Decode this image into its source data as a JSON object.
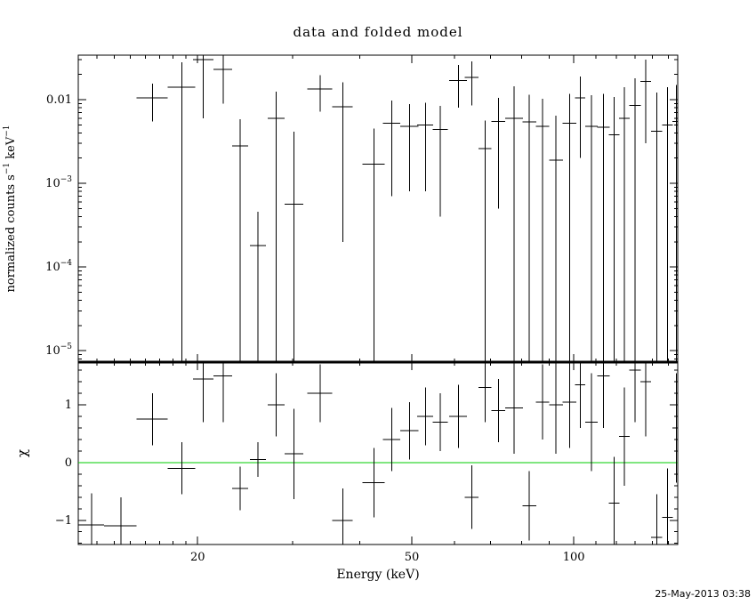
{
  "footer": {
    "timestamp": "25-May-2013 03:38"
  },
  "chart_data": {
    "type": "scatter",
    "title": "data and folded model",
    "xlabel": "Energy (keV)",
    "ylabel_top": [
      {
        "t": "normalized counts s"
      },
      {
        "t": "−1",
        "sup": true
      },
      {
        "t": " keV"
      },
      {
        "t": "−1",
        "sup": true
      }
    ],
    "ylabel_bottom": "χ",
    "xscale": "log",
    "xlim": [
      12,
      156
    ],
    "xticks": [
      {
        "v": 20,
        "label": "20"
      },
      {
        "v": 50,
        "label": "50"
      },
      {
        "v": 100,
        "label": "100"
      }
    ],
    "grid": false,
    "legend": false,
    "marker_style": "error-bar-cross",
    "line_color": "#000000",
    "top_panel": {
      "yscale": "log",
      "ylim": [
        7.3e-06,
        0.034
      ],
      "yticks": [
        {
          "v": 0.01,
          "label": "0.01"
        },
        {
          "v": 0.001,
          "label": "10^−3"
        },
        {
          "v": 0.0001,
          "label": "10^−4"
        },
        {
          "v": 1e-05,
          "label": "10^−5"
        }
      ]
    },
    "bottom_panel": {
      "yscale": "linear",
      "ylim": [
        -1.42,
        1.74
      ],
      "yticks": [
        {
          "v": 1,
          "label": "1"
        },
        {
          "v": 0,
          "label": "0"
        },
        {
          "v": -1,
          "label": "−1"
        }
      ],
      "zero_line_color": "#00cc00"
    },
    "points": [
      {
        "e": 12.7,
        "de": 0.7,
        "rate": null,
        "rate_err": null,
        "chi": -1.08,
        "chi_err": 0.55
      },
      {
        "e": 14.4,
        "de": 1.0,
        "rate": null,
        "rate_err": null,
        "chi": -1.1,
        "chi_err": 0.5
      },
      {
        "e": 16.5,
        "de": 1.1,
        "rate": 0.0105,
        "rate_err": 0.005,
        "chi": 0.75,
        "chi_err": 0.45
      },
      {
        "e": 18.7,
        "de": 1.1,
        "rate": 0.014,
        "rate_err": 0.014,
        "chi": -0.1,
        "chi_err": 0.45
      },
      {
        "e": 20.5,
        "de": 0.9,
        "rate": 0.03,
        "rate_err": 0.024,
        "chi": 1.45,
        "chi_err": 0.75
      },
      {
        "e": 22.3,
        "de": 0.9,
        "rate": 0.023,
        "rate_err": 0.014,
        "chi": 1.5,
        "chi_err": 0.8
      },
      {
        "e": 24.0,
        "de": 0.8,
        "rate": 0.0028,
        "rate_err": 0.003,
        "chi": -0.45,
        "chi_err": 0.38
      },
      {
        "e": 25.9,
        "de": 0.9,
        "rate": 0.00018,
        "rate_err": 0.00028,
        "chi": 0.05,
        "chi_err": 0.3
      },
      {
        "e": 28.0,
        "de": 1.0,
        "rate": 0.006,
        "rate_err": 0.0065,
        "chi": 1.0,
        "chi_err": 0.55
      },
      {
        "e": 30.2,
        "de": 1.2,
        "rate": 0.00056,
        "rate_err": 0.0036,
        "chi": 0.15,
        "chi_err": 0.78
      },
      {
        "e": 33.8,
        "de": 1.8,
        "rate": 0.0134,
        "rate_err": 0.0062,
        "chi": 1.2,
        "chi_err": 0.5
      },
      {
        "e": 37.2,
        "de": 1.6,
        "rate": 0.0082,
        "rate_err": 0.008,
        "chi": -1.0,
        "chi_err": 0.55
      },
      {
        "e": 42.5,
        "de": 2.0,
        "rate": 0.0017,
        "rate_err": 0.0028,
        "chi": -0.35,
        "chi_err": 0.6
      },
      {
        "e": 45.9,
        "de": 1.7,
        "rate": 0.0052,
        "rate_err": 0.0045,
        "chi": 0.4,
        "chi_err": 0.55
      },
      {
        "e": 49.5,
        "de": 1.9,
        "rate": 0.0048,
        "rate_err": 0.004,
        "chi": 0.55,
        "chi_err": 0.5
      },
      {
        "e": 53.0,
        "de": 1.8,
        "rate": 0.005,
        "rate_err": 0.0042,
        "chi": 0.8,
        "chi_err": 0.5
      },
      {
        "e": 56.5,
        "de": 1.8,
        "rate": 0.0044,
        "rate_err": 0.004,
        "chi": 0.7,
        "chi_err": 0.5
      },
      {
        "e": 61.0,
        "de": 2.3,
        "rate": 0.017,
        "rate_err": 0.009,
        "chi": 0.8,
        "chi_err": 0.55
      },
      {
        "e": 64.6,
        "de": 1.9,
        "rate": 0.0185,
        "rate_err": 0.01,
        "chi": -0.6,
        "chi_err": 0.55
      },
      {
        "e": 68.4,
        "de": 1.9,
        "rate": 0.0026,
        "rate_err": 0.003,
        "chi": 1.3,
        "chi_err": 0.6
      },
      {
        "e": 72.4,
        "de": 2.1,
        "rate": 0.0055,
        "rate_err": 0.005,
        "chi": 0.9,
        "chi_err": 0.55
      },
      {
        "e": 77.5,
        "de": 3.0,
        "rate": 0.006,
        "rate_err": 0.0085,
        "chi": 0.95,
        "chi_err": 0.8
      },
      {
        "e": 82.7,
        "de": 2.4,
        "rate": 0.0054,
        "rate_err": 0.006,
        "chi": -0.75,
        "chi_err": 0.6
      },
      {
        "e": 87.5,
        "de": 2.5,
        "rate": 0.0048,
        "rate_err": 0.0055,
        "chi": 1.05,
        "chi_err": 0.65
      },
      {
        "e": 92.7,
        "de": 2.7,
        "rate": 0.0019,
        "rate_err": 0.0045,
        "chi": 1.0,
        "chi_err": 0.85
      },
      {
        "e": 98.2,
        "de": 2.9,
        "rate": 0.0052,
        "rate_err": 0.0065,
        "chi": 1.05,
        "chi_err": 0.8
      },
      {
        "e": 102.8,
        "de": 2.3,
        "rate": 0.0105,
        "rate_err": 0.0085,
        "chi": 1.35,
        "chi_err": 0.75
      },
      {
        "e": 107.9,
        "de": 2.8,
        "rate": 0.0048,
        "rate_err": 0.0065,
        "chi": 0.7,
        "chi_err": 0.85
      },
      {
        "e": 113.5,
        "de": 3.0,
        "rate": 0.0047,
        "rate_err": 0.007,
        "chi": 1.5,
        "chi_err": 0.9
      },
      {
        "e": 118.8,
        "de": 2.7,
        "rate": 0.0038,
        "rate_err": 0.007,
        "chi": -0.7,
        "chi_err": 0.8
      },
      {
        "e": 124.2,
        "de": 2.9,
        "rate": 0.006,
        "rate_err": 0.008,
        "chi": 0.45,
        "chi_err": 0.85
      },
      {
        "e": 130.0,
        "de": 3.1,
        "rate": 0.0085,
        "rate_err": 0.0095,
        "chi": 1.6,
        "chi_err": 0.9
      },
      {
        "e": 136.1,
        "de": 3.2,
        "rate": 0.0165,
        "rate_err": 0.0135,
        "chi": 1.4,
        "chi_err": 0.95
      },
      {
        "e": 142.6,
        "de": 3.3,
        "rate": 0.0042,
        "rate_err": 0.008,
        "chi": -1.3,
        "chi_err": 0.75
      },
      {
        "e": 149.3,
        "de": 3.4,
        "rate": 0.005,
        "rate_err": 0.009,
        "chi": -0.95,
        "chi_err": 0.85
      },
      {
        "e": 155.0,
        "de": 2.5,
        "rate": 0.0055,
        "rate_err": 0.0095,
        "chi": 0.6,
        "chi_err": 0.95
      }
    ]
  }
}
